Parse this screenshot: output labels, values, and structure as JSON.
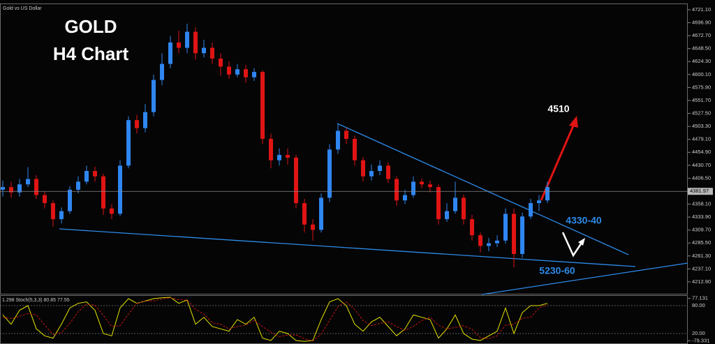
{
  "chart_data": [
    {
      "type": "candlestick",
      "title": "GOLD",
      "subtitle": "H4 Chart",
      "symbol": "Gold vs US Dollar",
      "up_color": "#2f86f0",
      "down_color": "#e01414",
      "series": {
        "open": [
          4385,
          4390,
          4380,
          4395,
          4405,
          4375,
          4360,
          4330,
          4345,
          4385,
          4400,
          4420,
          4410,
          4350,
          4340,
          4430,
          4515,
          4500,
          4530,
          4590,
          4620,
          4660,
          4650,
          4680,
          4640,
          4650,
          4630,
          4615,
          4600,
          4610,
          4595,
          4605,
          4480,
          4440,
          4450,
          4445,
          4360,
          4320,
          4310,
          4370,
          4460,
          4495,
          4480,
          4440,
          4410,
          4420,
          4430,
          4405,
          4365,
          4375,
          4400,
          4395,
          4390,
          4330,
          4345,
          4370,
          4330,
          4300,
          4280,
          4285,
          4290,
          4340,
          4265,
          4335,
          4360,
          4365
        ],
        "high": [
          4402,
          4400,
          4405,
          4427,
          4412,
          4382,
          4365,
          4352,
          4392,
          4410,
          4430,
          4428,
          4415,
          4358,
          4440,
          4522,
          4525,
          4545,
          4600,
          4640,
          4672,
          4682,
          4695,
          4688,
          4665,
          4660,
          4640,
          4625,
          4620,
          4618,
          4612,
          4608,
          4490,
          4462,
          4462,
          4450,
          4368,
          4330,
          4378,
          4470,
          4508,
          4500,
          4486,
          4446,
          4432,
          4440,
          4436,
          4410,
          4385,
          4410,
          4406,
          4402,
          4395,
          4360,
          4400,
          4376,
          4338,
          4305,
          4295,
          4300,
          4350,
          4350,
          4342,
          4368,
          4375,
          4400
        ],
        "low": [
          4372,
          4370,
          4372,
          4390,
          4368,
          4350,
          4316,
          4322,
          4340,
          4378,
          4395,
          4400,
          4338,
          4330,
          4336,
          4425,
          4490,
          4492,
          4522,
          4580,
          4612,
          4640,
          4640,
          4628,
          4632,
          4620,
          4598,
          4592,
          4595,
          4585,
          4588,
          4470,
          4425,
          4430,
          4432,
          4350,
          4305,
          4290,
          4305,
          4362,
          4452,
          4470,
          4430,
          4400,
          4402,
          4412,
          4398,
          4355,
          4358,
          4370,
          4388,
          4380,
          4320,
          4325,
          4340,
          4320,
          4290,
          4268,
          4270,
          4278,
          4284,
          4240,
          4258,
          4330,
          4345,
          4360
        ],
        "close": [
          4390,
          4380,
          4395,
          4405,
          4375,
          4360,
          4330,
          4345,
          4385,
          4400,
          4420,
          4410,
          4350,
          4340,
          4430,
          4515,
          4500,
          4530,
          4590,
          4620,
          4660,
          4650,
          4680,
          4640,
          4650,
          4630,
          4615,
          4600,
          4610,
          4595,
          4605,
          4480,
          4440,
          4450,
          4445,
          4360,
          4320,
          4310,
          4370,
          4460,
          4495,
          4480,
          4440,
          4410,
          4420,
          4430,
          4405,
          4365,
          4375,
          4400,
          4395,
          4390,
          4330,
          4345,
          4370,
          4330,
          4300,
          4280,
          4285,
          4290,
          4340,
          4265,
          4335,
          4360,
          4365,
          4390
        ]
      },
      "ylim": [
        4192,
        4731.5
      ],
      "yticks": [
        {
          "value": 4721.1,
          "label": "4721.10"
        },
        {
          "value": 4696.9,
          "label": "4696.90"
        },
        {
          "value": 4672.7,
          "label": "4672.70"
        },
        {
          "value": 4648.5,
          "label": "4648.50"
        },
        {
          "value": 4624.3,
          "label": "4624.30"
        },
        {
          "value": 4600.1,
          "label": "4600.10"
        },
        {
          "value": 4575.9,
          "label": "4575.90"
        },
        {
          "value": 4551.7,
          "label": "4551.70"
        },
        {
          "value": 4527.5,
          "label": "4527.50"
        },
        {
          "value": 4503.3,
          "label": "4503.30"
        },
        {
          "value": 4479.1,
          "label": "4479.10"
        },
        {
          "value": 4454.9,
          "label": "4454.90"
        },
        {
          "value": 4430.7,
          "label": "4430.70"
        },
        {
          "value": 4406.5,
          "label": "4406.50"
        },
        {
          "value": 4358.1,
          "label": "4358.10"
        },
        {
          "value": 4333.9,
          "label": "4333.90"
        },
        {
          "value": 4309.7,
          "label": "4309.70"
        },
        {
          "value": 4285.5,
          "label": "4285.50"
        },
        {
          "value": 4261.3,
          "label": "4261.30"
        },
        {
          "value": 4237.1,
          "label": "4237.10"
        },
        {
          "value": 4212.9,
          "label": "4212.90"
        }
      ],
      "current_price": 4381.97,
      "annotations": [
        "4510",
        "4330-40",
        "5230-60"
      ]
    },
    {
      "type": "line",
      "title": "1.298 Stoch(5,3,3) 80.85 77.55",
      "ylim": [
        0,
        100
      ],
      "yticks": [
        {
          "value": 80,
          "label": "80.00"
        },
        {
          "value": 20,
          "label": "20.00"
        }
      ],
      "y2lim": [
        -79.331,
        77.131
      ],
      "y2ticks": [
        77.131,
        -79.331
      ],
      "series": [
        {
          "color": "#e6e600",
          "values": [
            60,
            40,
            70,
            80,
            30,
            15,
            10,
            40,
            75,
            85,
            88,
            70,
            20,
            15,
            75,
            95,
            85,
            90,
            95,
            97,
            98,
            85,
            92,
            40,
            55,
            35,
            30,
            25,
            50,
            40,
            55,
            10,
            5,
            25,
            20,
            5,
            3,
            5,
            50,
            88,
            95,
            80,
            40,
            25,
            45,
            55,
            35,
            15,
            30,
            60,
            55,
            50,
            10,
            30,
            60,
            20,
            8,
            5,
            15,
            25,
            75,
            20,
            65,
            80,
            80,
            85
          ]
        },
        {
          "color": "#c81414",
          "values": [
            55,
            52,
            57,
            63,
            60,
            38,
            18,
            22,
            42,
            67,
            83,
            81,
            59,
            35,
            37,
            62,
            85,
            90,
            90,
            94,
            97,
            93,
            92,
            72,
            62,
            43,
            40,
            30,
            35,
            38,
            48,
            35,
            23,
            13,
            17,
            17,
            9,
            4,
            19,
            48,
            78,
            88,
            72,
            48,
            37,
            42,
            45,
            35,
            27,
            35,
            48,
            55,
            38,
            30,
            33,
            37,
            29,
            11,
            9,
            15,
            38,
            40,
            53,
            55,
            75,
            82
          ]
        }
      ]
    }
  ]
}
